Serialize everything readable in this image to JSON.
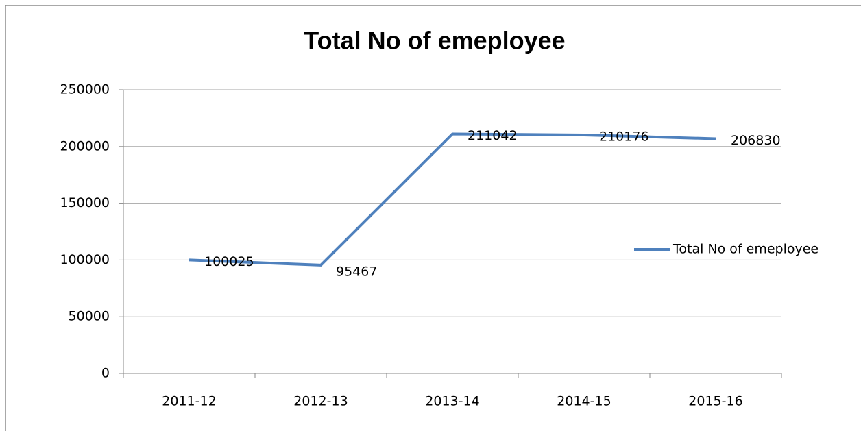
{
  "chart_data": {
    "type": "line",
    "title": "Total No of emeployee",
    "categories": [
      "2011-12",
      "2012-13",
      "2013-14",
      "2014-15",
      "2015-16"
    ],
    "series": [
      {
        "name": "Total No of emeployee",
        "color": "#4f81bd",
        "values": [
          100025,
          95467,
          211042,
          210176,
          206830
        ]
      }
    ],
    "ylim": [
      0,
      250000
    ],
    "yticks": [
      0,
      50000,
      100000,
      150000,
      200000,
      250000
    ],
    "grid": true,
    "legend": "right",
    "data_labels": true
  }
}
